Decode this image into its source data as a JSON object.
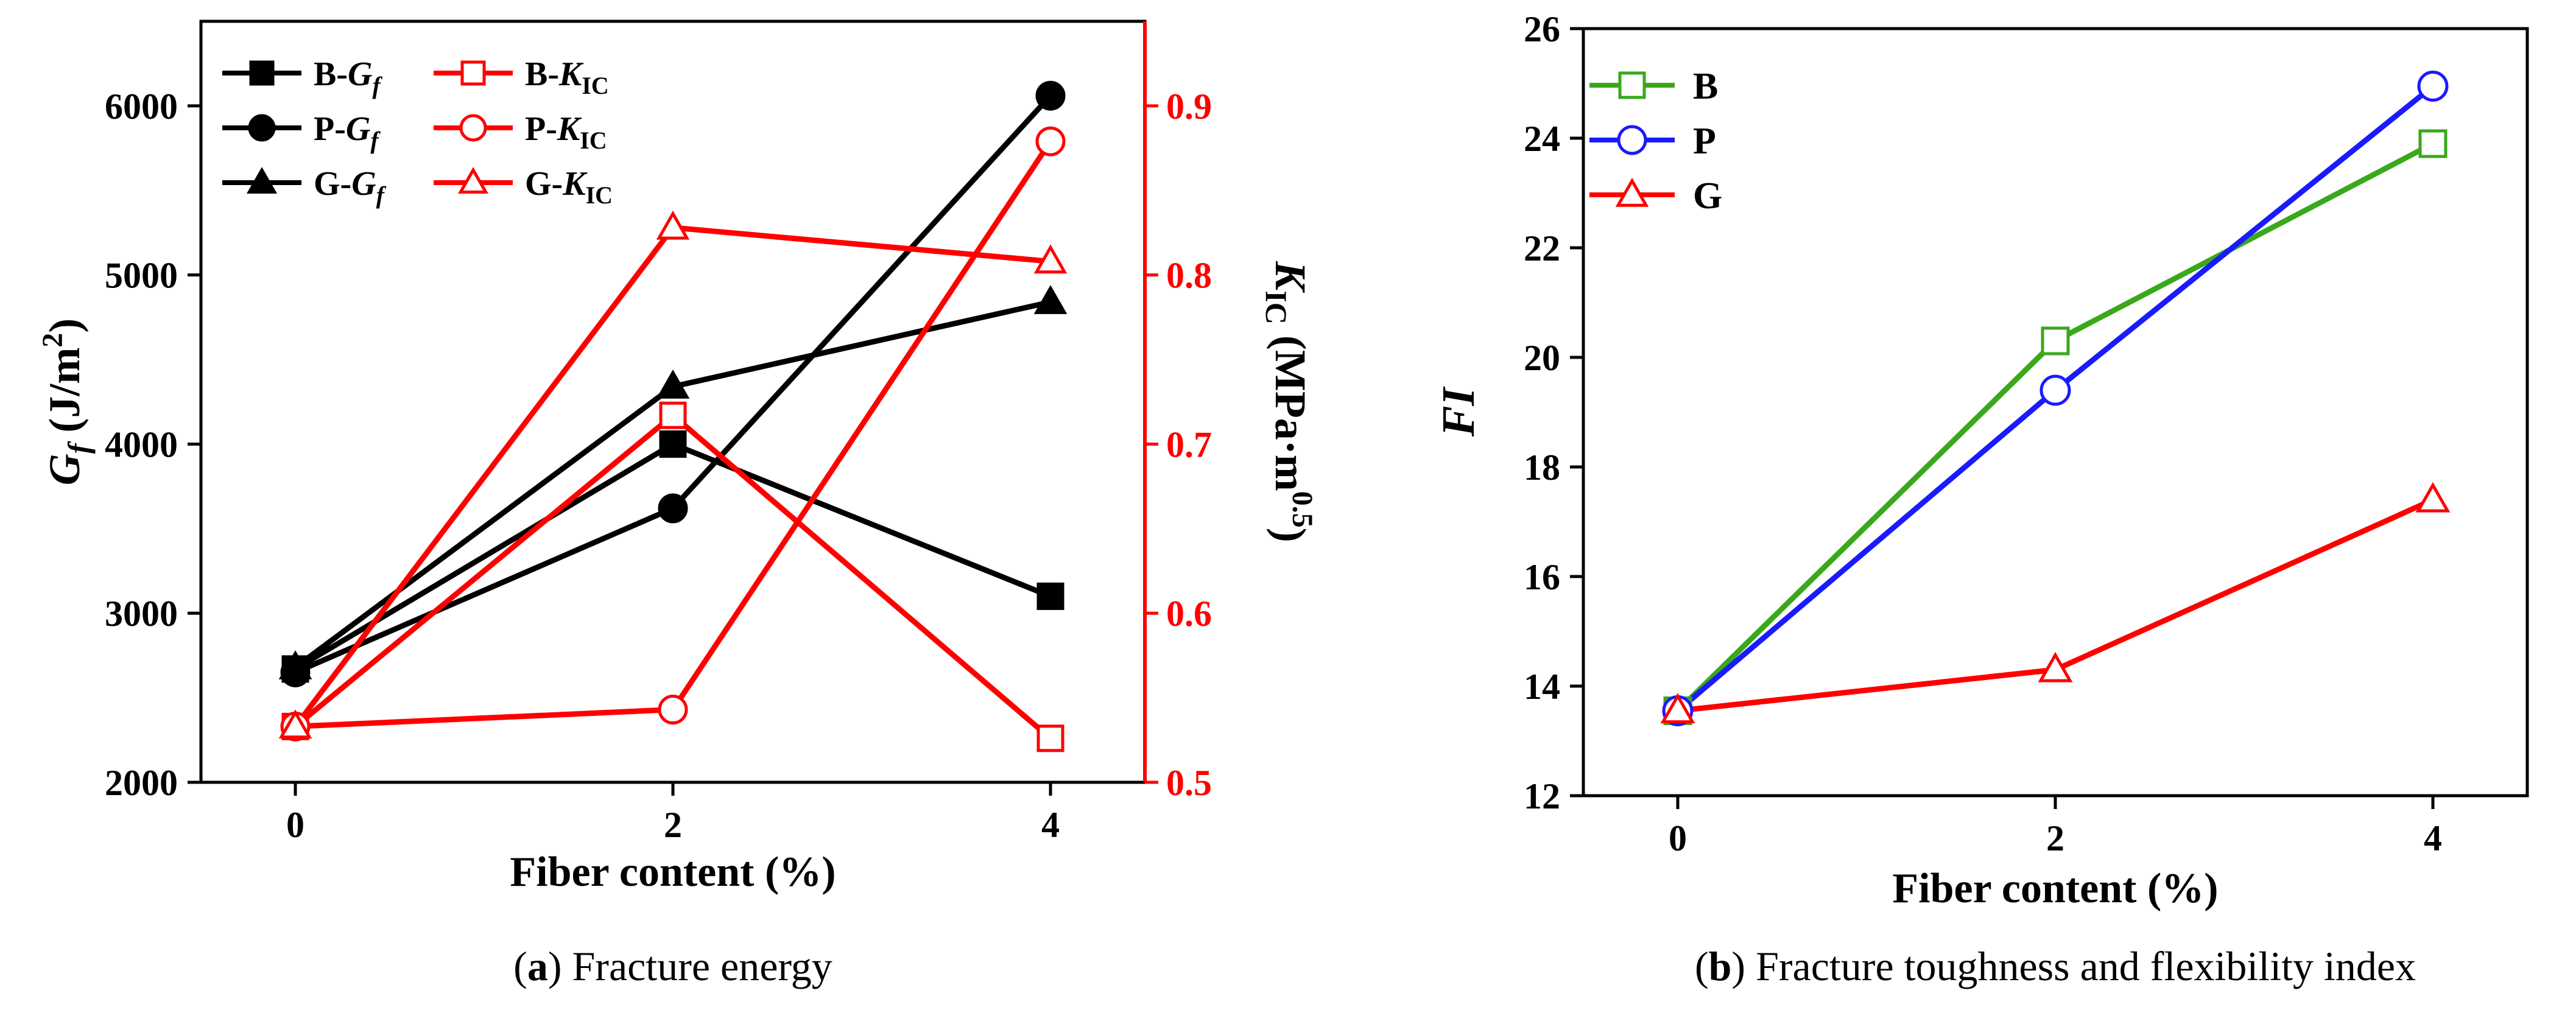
{
  "colors": {
    "black": "#000000",
    "red": "#ff0000",
    "green": "#3aa81b",
    "blue": "#1a1aff"
  },
  "chart_data": [
    {
      "id": "a",
      "type": "line",
      "caption": {
        "letter": "a",
        "text": "Fracture energy"
      },
      "xlabel": "Fiber content (%)",
      "x": [
        0,
        2,
        4
      ],
      "xlim": [
        -0.5,
        4.5
      ],
      "xticks": [
        "0",
        "2",
        "4"
      ],
      "ylabel_left": {
        "main": "G",
        "sub": "f",
        "unit": " (J/m",
        "sup": "2",
        "close": ")"
      },
      "ylim_left": [
        2000,
        6500
      ],
      "yticks_left": [
        "2000",
        "3000",
        "4000",
        "5000",
        "6000"
      ],
      "ylabel_right": {
        "main": "K",
        "sub": "IC",
        "unit": " (MPa·m",
        "sup": "0.5",
        "close": ")"
      },
      "ylim_right": [
        0.5,
        0.95
      ],
      "yticks_right": [
        "0.5",
        "0.6",
        "0.7",
        "0.8",
        "0.9"
      ],
      "series": [
        {
          "name": "B-Gf",
          "prefix": "B-",
          "main": "G",
          "sub": "f",
          "axis": "left",
          "color": "#000000",
          "marker": "square",
          "filled": true,
          "values": [
            2670,
            4000,
            3100
          ]
        },
        {
          "name": "P-Gf",
          "prefix": "P-",
          "main": "G",
          "sub": "f",
          "axis": "left",
          "color": "#000000",
          "marker": "circle",
          "filled": true,
          "values": [
            2650,
            3620,
            6060
          ]
        },
        {
          "name": "G-Gf",
          "prefix": "G-",
          "main": "G",
          "sub": "f",
          "axis": "left",
          "color": "#000000",
          "marker": "triangle",
          "filled": true,
          "values": [
            2680,
            4340,
            4840
          ]
        },
        {
          "name": "B-KIC",
          "prefix": "B-",
          "main": "K",
          "sub": "IC",
          "axis": "right",
          "color": "#ff0000",
          "marker": "square",
          "filled": false,
          "values": [
            0.533,
            0.717,
            0.526
          ]
        },
        {
          "name": "P-KIC",
          "prefix": "P-",
          "main": "K",
          "sub": "IC",
          "axis": "right",
          "color": "#ff0000",
          "marker": "circle",
          "filled": false,
          "values": [
            0.533,
            0.543,
            0.879
          ]
        },
        {
          "name": "G-KIC",
          "prefix": "G-",
          "main": "K",
          "sub": "IC",
          "axis": "right",
          "color": "#ff0000",
          "marker": "triangle",
          "filled": false,
          "values": [
            0.533,
            0.828,
            0.808
          ]
        }
      ]
    },
    {
      "id": "b",
      "type": "line",
      "caption": {
        "letter": "b",
        "text": "Fracture toughness and flexibility index"
      },
      "xlabel": "Fiber content (%)",
      "ylabel": "FI",
      "x": [
        0,
        2,
        4
      ],
      "xlim": [
        -0.5,
        4.5
      ],
      "xticks": [
        "0",
        "2",
        "4"
      ],
      "ylim": [
        12,
        26
      ],
      "yticks": [
        "12",
        "14",
        "16",
        "18",
        "20",
        "22",
        "24",
        "26"
      ],
      "series": [
        {
          "name": "B",
          "color": "#3aa81b",
          "marker": "square",
          "filled": false,
          "values": [
            13.55,
            20.3,
            23.9
          ]
        },
        {
          "name": "P",
          "color": "#1a1aff",
          "marker": "circle",
          "filled": false,
          "values": [
            13.55,
            19.4,
            24.95
          ]
        },
        {
          "name": "G",
          "color": "#ff0000",
          "marker": "triangle",
          "filled": false,
          "values": [
            13.55,
            14.3,
            17.4
          ]
        }
      ]
    }
  ]
}
